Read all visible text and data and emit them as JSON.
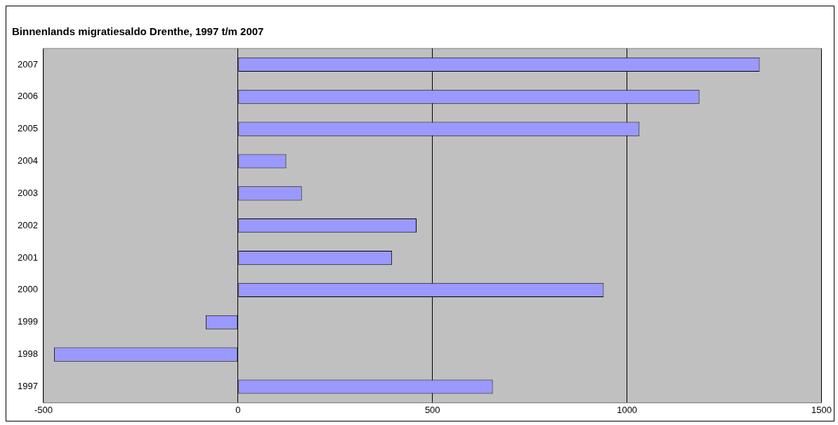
{
  "chart_data": {
    "type": "bar",
    "orientation": "horizontal",
    "title": "Binnenlands migratiesaldo Drenthe, 1997 t/m 2007",
    "categories": [
      "2007",
      "2006",
      "2005",
      "2004",
      "2003",
      "2002",
      "2001",
      "2000",
      "1999",
      "1998",
      "1997"
    ],
    "values": [
      1341,
      1186,
      1032,
      124,
      164,
      459,
      396,
      940,
      -83,
      -473,
      655
    ],
    "color": "#9999ff",
    "xlim": [
      -500,
      1500
    ],
    "xticks": [
      -500,
      0,
      500,
      1000,
      1500
    ],
    "grid": "x",
    "legend": false
  }
}
